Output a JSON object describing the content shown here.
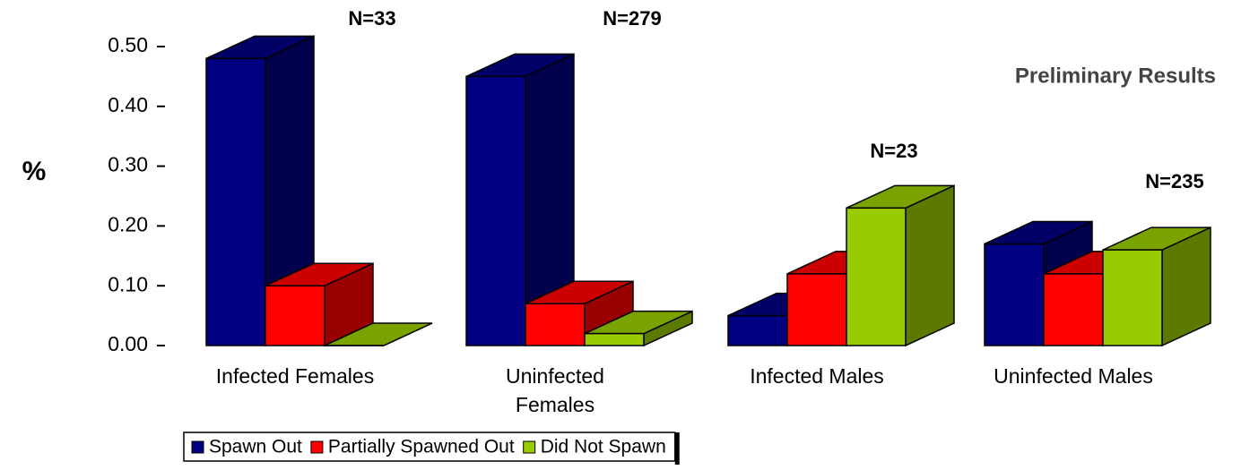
{
  "chart_data": {
    "type": "bar3d",
    "y_label": "%",
    "subtitle": "Preliminary Results",
    "categories": [
      "Infected Females",
      "Uninfected Females",
      "Infected Males",
      "Uninfected Males"
    ],
    "series": [
      {
        "name": "Spawn Out",
        "color": "#000080",
        "values": [
          0.48,
          0.45,
          0.05,
          0.17
        ]
      },
      {
        "name": "Partially Spawned Out",
        "color": "#ff0000",
        "values": [
          0.1,
          0.07,
          0.12,
          0.12
        ]
      },
      {
        "name": "Did Not Spawn",
        "color": "#99cc00",
        "values": [
          0.0,
          0.02,
          0.23,
          0.16
        ]
      }
    ],
    "annotations": [
      "N=33",
      "N=279",
      "N=23",
      "N=235"
    ],
    "ylim": [
      0,
      0.5
    ],
    "yticks": [
      {
        "value": 0,
        "label": "0.00"
      },
      {
        "value": 0.1,
        "label": "0.10"
      },
      {
        "value": 0.2,
        "label": "0.20"
      },
      {
        "value": 0.3,
        "label": "0.30"
      },
      {
        "value": 0.4,
        "label": "0.40"
      },
      {
        "value": 0.5,
        "label": "0.50"
      }
    ],
    "legend": "bottom"
  }
}
